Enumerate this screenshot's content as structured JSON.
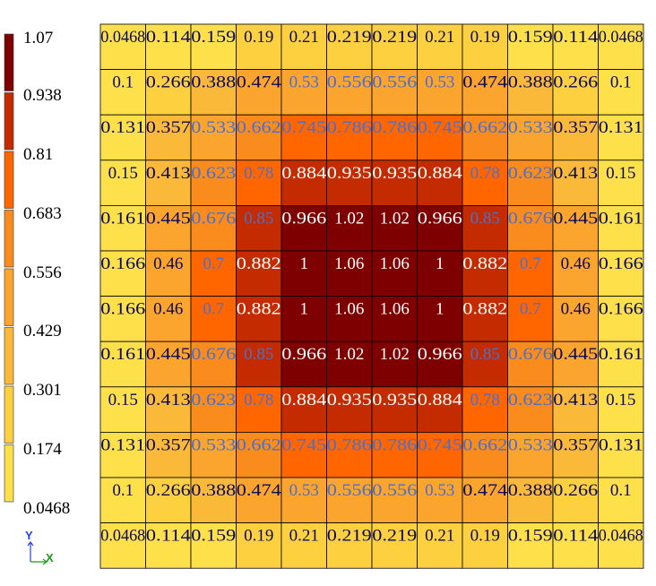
{
  "chart_data": {
    "type": "heatmap",
    "title": "",
    "rows": [
      [
        "0.0468",
        "0.114",
        "0.159",
        "0.19",
        "0.21",
        "0.219",
        "0.219",
        "0.21",
        "0.19",
        "0.159",
        "0.114",
        "0.0468"
      ],
      [
        "0.1",
        "0.266",
        "0.388",
        "0.474",
        "0.53",
        "0.556",
        "0.556",
        "0.53",
        "0.474",
        "0.388",
        "0.266",
        "0.1"
      ],
      [
        "0.131",
        "0.357",
        "0.533",
        "0.662",
        "0.745",
        "0.786",
        "0.786",
        "0.745",
        "0.662",
        "0.533",
        "0.357",
        "0.131"
      ],
      [
        "0.15",
        "0.413",
        "0.623",
        "0.78",
        "0.884",
        "0.935",
        "0.935",
        "0.884",
        "0.78",
        "0.623",
        "0.413",
        "0.15"
      ],
      [
        "0.161",
        "0.445",
        "0.676",
        "0.85",
        "0.966",
        "1.02",
        "1.02",
        "0.966",
        "0.85",
        "0.676",
        "0.445",
        "0.161"
      ],
      [
        "0.166",
        "0.46",
        "0.7",
        "0.882",
        "1",
        "1.06",
        "1.06",
        "1",
        "0.882",
        "0.7",
        "0.46",
        "0.166"
      ],
      [
        "0.166",
        "0.46",
        "0.7",
        "0.882",
        "1",
        "1.06",
        "1.06",
        "1",
        "0.882",
        "0.7",
        "0.46",
        "0.166"
      ],
      [
        "0.161",
        "0.445",
        "0.676",
        "0.85",
        "0.966",
        "1.02",
        "1.02",
        "0.966",
        "0.85",
        "0.676",
        "0.445",
        "0.161"
      ],
      [
        "0.15",
        "0.413",
        "0.623",
        "0.78",
        "0.884",
        "0.935",
        "0.935",
        "0.884",
        "0.78",
        "0.623",
        "0.413",
        "0.15"
      ],
      [
        "0.131",
        "0.357",
        "0.533",
        "0.662",
        "0.745",
        "0.786",
        "0.786",
        "0.745",
        "0.662",
        "0.533",
        "0.357",
        "0.131"
      ],
      [
        "0.1",
        "0.266",
        "0.388",
        "0.474",
        "0.53",
        "0.556",
        "0.556",
        "0.53",
        "0.474",
        "0.388",
        "0.266",
        "0.1"
      ],
      [
        "0.0468",
        "0.114",
        "0.159",
        "0.19",
        "0.21",
        "0.219",
        "0.219",
        "0.21",
        "0.19",
        "0.159",
        "0.114",
        "0.0468"
      ]
    ],
    "colorbar": {
      "labels": [
        "1.07",
        "0.938",
        "0.81",
        "0.683",
        "0.556",
        "0.429",
        "0.301",
        "0.174",
        "0.0468"
      ],
      "min": 0.0468,
      "max": 1.07,
      "band_colors_top_to_bottom": [
        "#7f0000",
        "#c42c00",
        "#ff6600",
        "#f98c1c",
        "#fba42e",
        "#fbb93a",
        "#fdd040",
        "#fde04a"
      ]
    },
    "grid": true,
    "axis_triad": {
      "y_label": "Y",
      "x_label": "X",
      "y_color": "#1f3ff2",
      "x_color": "#1a9b1a"
    },
    "label_colors": {
      "dark_text": "#0a0a5a",
      "light_text": "#ffffff",
      "mid_text": "#4a6fd0"
    }
  }
}
